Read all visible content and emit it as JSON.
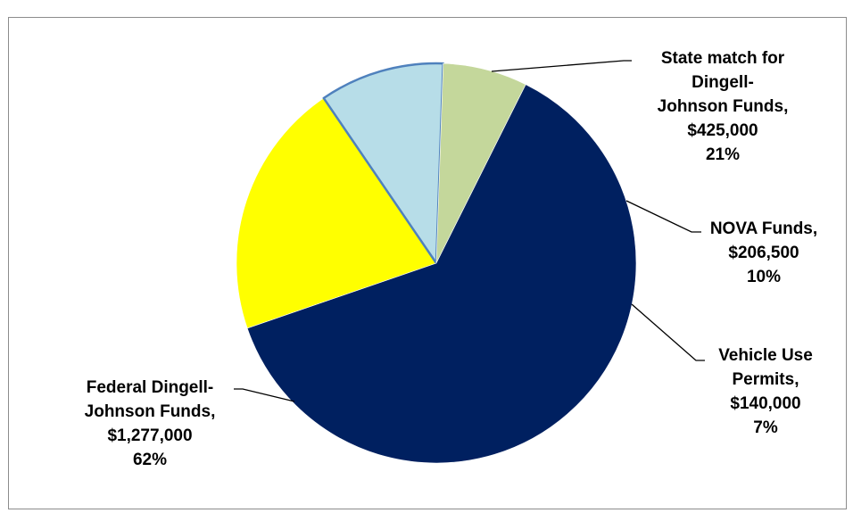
{
  "chart_data": {
    "type": "pie",
    "title": "",
    "slices": [
      {
        "label_lines": [
          "State match for",
          "Dingell-",
          "Johnson Funds,",
          "$425,000",
          "21%"
        ],
        "value": 425000,
        "percent": 21,
        "color": "#ffff00"
      },
      {
        "label_lines": [
          "NOVA Funds,",
          "$206,500",
          "10%"
        ],
        "value": 206500,
        "percent": 10,
        "color": "#b7dde8"
      },
      {
        "label_lines": [
          "Vehicle Use",
          "Permits,",
          "$140,000",
          "7%"
        ],
        "value": 140000,
        "percent": 7,
        "color": "#c4d79b"
      },
      {
        "label_lines": [
          "Federal Dingell-",
          "Johnson Funds,",
          "$1,277,000",
          "62%"
        ],
        "value": 1277000,
        "percent": 62,
        "color": "#002060"
      }
    ],
    "legend": "none"
  }
}
